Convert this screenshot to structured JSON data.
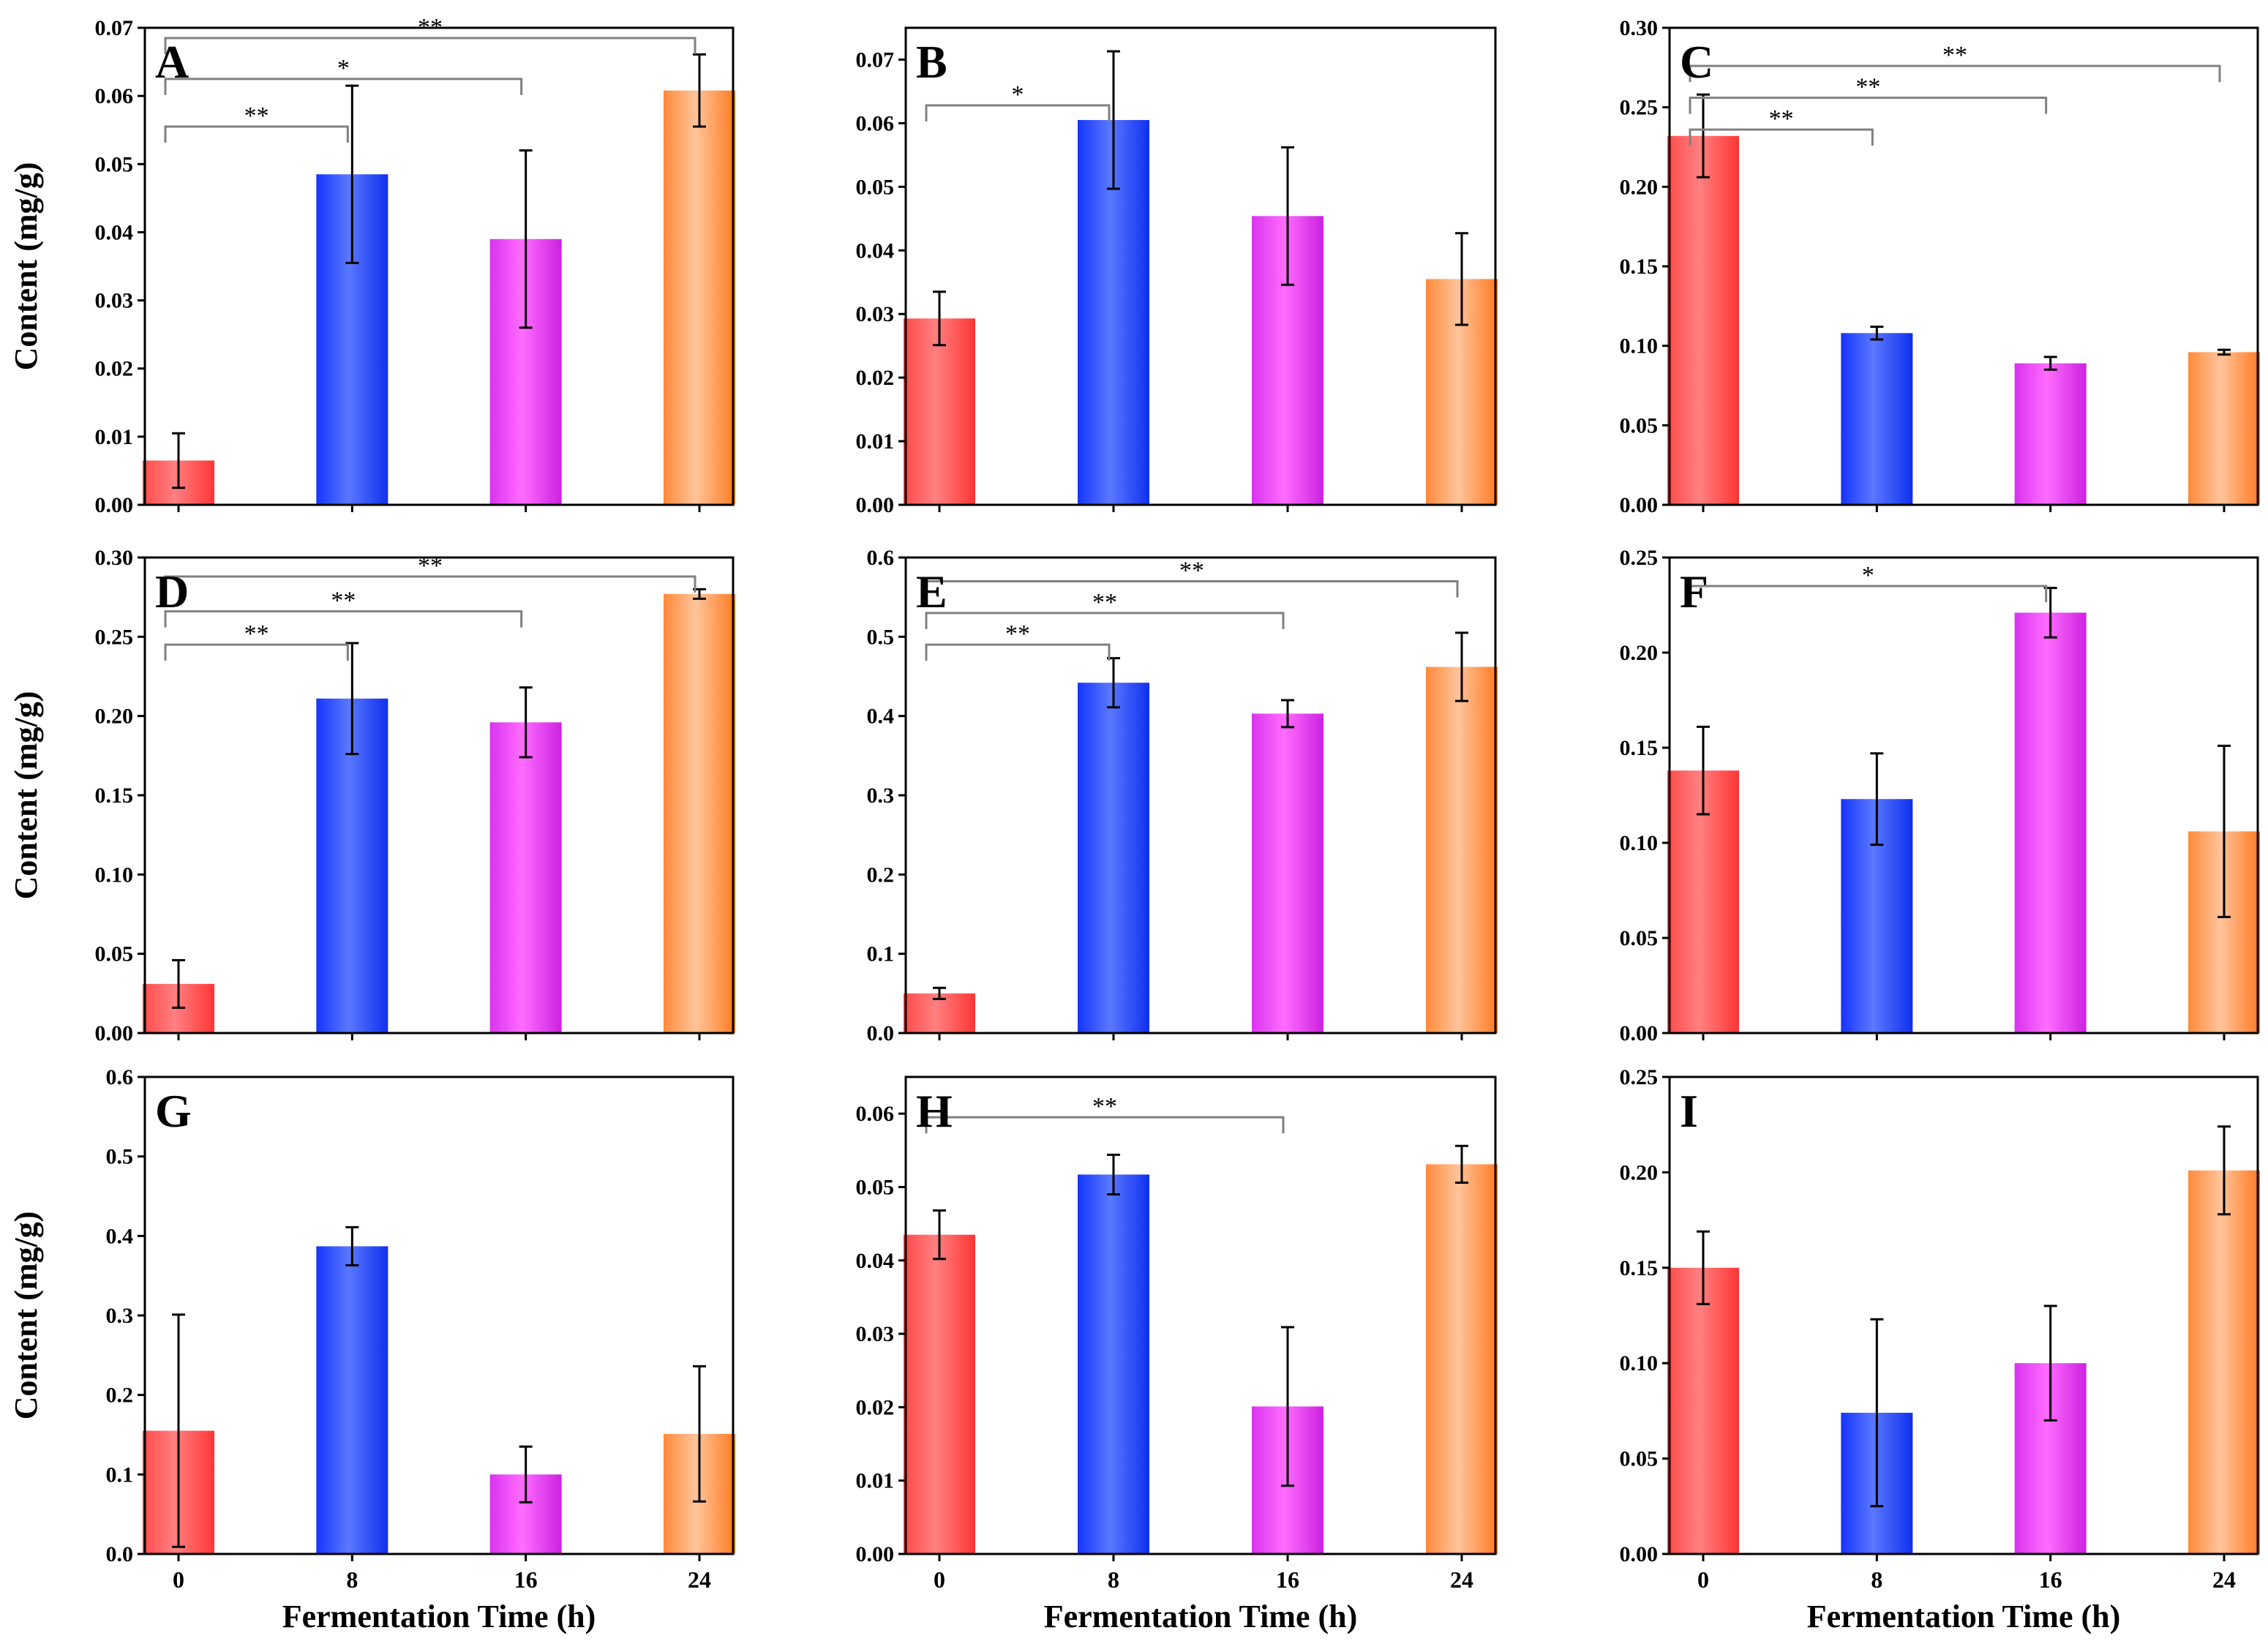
{
  "chart_data": [
    {
      "panel": "A",
      "type": "bar",
      "categories": [
        "0",
        "8",
        "16",
        "24"
      ],
      "values": [
        0.0065,
        0.0485,
        0.039,
        0.0608
      ],
      "errors": [
        0.004,
        0.013,
        0.013,
        0.0053
      ],
      "ylim": [
        0,
        0.07
      ],
      "yticks": [
        "0.00",
        "0.01",
        "0.02",
        "0.03",
        "0.04",
        "0.05",
        "0.06",
        "0.07"
      ],
      "ylabel": "Content (mg/g)",
      "xlabel": "",
      "significance": [
        {
          "from": 0,
          "to": 1,
          "label": "**",
          "level": 0.0555
        },
        {
          "from": 0,
          "to": 2,
          "label": "*",
          "level": 0.0625
        },
        {
          "from": 0,
          "to": 3,
          "label": "**",
          "level": 0.0685
        }
      ]
    },
    {
      "panel": "B",
      "type": "bar",
      "categories": [
        "0",
        "8",
        "16",
        "24"
      ],
      "values": [
        0.0293,
        0.0605,
        0.0454,
        0.0355
      ],
      "errors": [
        0.0042,
        0.0108,
        0.0108,
        0.0072
      ],
      "ylim": [
        0,
        0.075
      ],
      "yticks": [
        "0.00",
        "0.01",
        "0.02",
        "0.03",
        "0.04",
        "0.05",
        "0.06",
        "0.07"
      ],
      "ylabel": "",
      "xlabel": "",
      "significance": [
        {
          "from": 0,
          "to": 1,
          "label": "*",
          "level": 0.0628
        }
      ]
    },
    {
      "panel": "C",
      "type": "bar",
      "categories": [
        "0",
        "8",
        "16",
        "24"
      ],
      "values": [
        0.232,
        0.108,
        0.089,
        0.096
      ],
      "errors": [
        0.026,
        0.004,
        0.004,
        0.0015
      ],
      "ylim": [
        0,
        0.3
      ],
      "yticks": [
        "0.00",
        "0.05",
        "0.10",
        "0.15",
        "0.20",
        "0.25",
        "0.30"
      ],
      "ylabel": "",
      "xlabel": "",
      "significance": [
        {
          "from": 0,
          "to": 1,
          "label": "**",
          "level": 0.236
        },
        {
          "from": 0,
          "to": 2,
          "label": "**",
          "level": 0.256
        },
        {
          "from": 0,
          "to": 3,
          "label": "**",
          "level": 0.276
        }
      ]
    },
    {
      "panel": "D",
      "type": "bar",
      "categories": [
        "0",
        "8",
        "16",
        "24"
      ],
      "values": [
        0.031,
        0.211,
        0.196,
        0.277
      ],
      "errors": [
        0.015,
        0.035,
        0.022,
        0.003
      ],
      "ylim": [
        0,
        0.3
      ],
      "yticks": [
        "0.00",
        "0.05",
        "0.10",
        "0.15",
        "0.20",
        "0.25",
        "0.30"
      ],
      "ylabel": "Content (mg/g)",
      "xlabel": "",
      "significance": [
        {
          "from": 0,
          "to": 1,
          "label": "**",
          "level": 0.245
        },
        {
          "from": 0,
          "to": 2,
          "label": "**",
          "level": 0.266
        },
        {
          "from": 0,
          "to": 3,
          "label": "**",
          "level": 0.288
        }
      ]
    },
    {
      "panel": "E",
      "type": "bar",
      "categories": [
        "0",
        "8",
        "16",
        "24"
      ],
      "values": [
        0.05,
        0.442,
        0.403,
        0.462
      ],
      "errors": [
        0.007,
        0.031,
        0.017,
        0.043
      ],
      "ylim": [
        0,
        0.6
      ],
      "yticks": [
        "0.0",
        "0.1",
        "0.2",
        "0.3",
        "0.4",
        "0.5",
        "0.6"
      ],
      "ylabel": "",
      "xlabel": "",
      "significance": [
        {
          "from": 0,
          "to": 1,
          "label": "**",
          "level": 0.49
        },
        {
          "from": 0,
          "to": 2,
          "label": "**",
          "level": 0.53
        },
        {
          "from": 0,
          "to": 3,
          "label": "**",
          "level": 0.57
        }
      ]
    },
    {
      "panel": "F",
      "type": "bar",
      "categories": [
        "0",
        "8",
        "16",
        "24"
      ],
      "values": [
        0.138,
        0.123,
        0.221,
        0.106
      ],
      "errors": [
        0.023,
        0.024,
        0.013,
        0.045
      ],
      "ylim": [
        0,
        0.25
      ],
      "yticks": [
        "0.00",
        "0.05",
        "0.10",
        "0.15",
        "0.20",
        "0.25"
      ],
      "ylabel": "",
      "xlabel": "",
      "significance": [
        {
          "from": 0,
          "to": 2,
          "label": "*",
          "level": 0.235
        }
      ]
    },
    {
      "panel": "G",
      "type": "bar",
      "categories": [
        "0",
        "8",
        "16",
        "24"
      ],
      "values": [
        0.155,
        0.387,
        0.1,
        0.151
      ],
      "errors": [
        0.146,
        0.024,
        0.035,
        0.085
      ],
      "ylim": [
        0,
        0.6
      ],
      "yticks": [
        "0.0",
        "0.1",
        "0.2",
        "0.3",
        "0.4",
        "0.5",
        "0.6"
      ],
      "ylabel": "Content (mg/g)",
      "xlabel": "Fermentation  Time (h)",
      "significance": []
    },
    {
      "panel": "H",
      "type": "bar",
      "categories": [
        "0",
        "8",
        "16",
        "24"
      ],
      "values": [
        0.0435,
        0.0517,
        0.0201,
        0.0531
      ],
      "errors": [
        0.0033,
        0.0027,
        0.0108,
        0.0025
      ],
      "ylim": [
        0,
        0.065
      ],
      "yticks": [
        "0.00",
        "0.01",
        "0.02",
        "0.03",
        "0.04",
        "0.05",
        "0.06"
      ],
      "ylabel": "",
      "xlabel": "Fermentation  Time (h)",
      "significance": [
        {
          "from": 0,
          "to": 2,
          "label": "**",
          "level": 0.0595
        }
      ]
    },
    {
      "panel": "I",
      "type": "bar",
      "categories": [
        "0",
        "8",
        "16",
        "24"
      ],
      "values": [
        0.15,
        0.074,
        0.1,
        0.201
      ],
      "errors": [
        0.019,
        0.049,
        0.03,
        0.023
      ],
      "ylim": [
        0,
        0.25
      ],
      "yticks": [
        "0.00",
        "0.05",
        "0.10",
        "0.15",
        "0.20",
        "0.25"
      ],
      "ylabel": "",
      "xlabel": "Fermentation  Time (h)",
      "significance": []
    }
  ],
  "colors": {
    "series": [
      [
        "#ff4a4a",
        "#ff8080",
        "#ff3535"
      ],
      [
        "#1535ff",
        "#5a78ff",
        "#1030ee"
      ],
      [
        "#d933ee",
        "#ff6cff",
        "#cc22e0"
      ],
      [
        "#ff8a3a",
        "#ffc49a",
        "#ff7a22"
      ]
    ],
    "axis": "#000000",
    "bracket": "#808080"
  }
}
